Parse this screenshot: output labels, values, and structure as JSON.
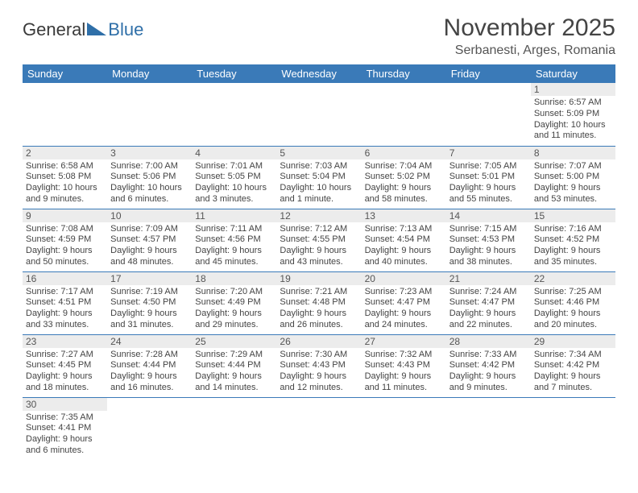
{
  "brand": {
    "part1": "General",
    "part2": "Blue",
    "color1": "#5a5a5a",
    "color2": "#2f6fa8",
    "triangle_color": "#2f6fa8"
  },
  "title": "November 2025",
  "location": "Serbanesti, Arges, Romania",
  "header_bg": "#3a7ab8",
  "header_text_color": "#ffffff",
  "daynum_bg": "#ececec",
  "border_color": "#3a7ab8",
  "page_bg": "#ffffff",
  "text_color": "#444444",
  "days_of_week": [
    "Sunday",
    "Monday",
    "Tuesday",
    "Wednesday",
    "Thursday",
    "Friday",
    "Saturday"
  ],
  "weeks": [
    [
      null,
      null,
      null,
      null,
      null,
      null,
      {
        "n": "1",
        "sr": "6:57 AM",
        "ss": "5:09 PM",
        "dl": "10 hours and 11 minutes."
      }
    ],
    [
      {
        "n": "2",
        "sr": "6:58 AM",
        "ss": "5:08 PM",
        "dl": "10 hours and 9 minutes."
      },
      {
        "n": "3",
        "sr": "7:00 AM",
        "ss": "5:06 PM",
        "dl": "10 hours and 6 minutes."
      },
      {
        "n": "4",
        "sr": "7:01 AM",
        "ss": "5:05 PM",
        "dl": "10 hours and 3 minutes."
      },
      {
        "n": "5",
        "sr": "7:03 AM",
        "ss": "5:04 PM",
        "dl": "10 hours and 1 minute."
      },
      {
        "n": "6",
        "sr": "7:04 AM",
        "ss": "5:02 PM",
        "dl": "9 hours and 58 minutes."
      },
      {
        "n": "7",
        "sr": "7:05 AM",
        "ss": "5:01 PM",
        "dl": "9 hours and 55 minutes."
      },
      {
        "n": "8",
        "sr": "7:07 AM",
        "ss": "5:00 PM",
        "dl": "9 hours and 53 minutes."
      }
    ],
    [
      {
        "n": "9",
        "sr": "7:08 AM",
        "ss": "4:59 PM",
        "dl": "9 hours and 50 minutes."
      },
      {
        "n": "10",
        "sr": "7:09 AM",
        "ss": "4:57 PM",
        "dl": "9 hours and 48 minutes."
      },
      {
        "n": "11",
        "sr": "7:11 AM",
        "ss": "4:56 PM",
        "dl": "9 hours and 45 minutes."
      },
      {
        "n": "12",
        "sr": "7:12 AM",
        "ss": "4:55 PM",
        "dl": "9 hours and 43 minutes."
      },
      {
        "n": "13",
        "sr": "7:13 AM",
        "ss": "4:54 PM",
        "dl": "9 hours and 40 minutes."
      },
      {
        "n": "14",
        "sr": "7:15 AM",
        "ss": "4:53 PM",
        "dl": "9 hours and 38 minutes."
      },
      {
        "n": "15",
        "sr": "7:16 AM",
        "ss": "4:52 PM",
        "dl": "9 hours and 35 minutes."
      }
    ],
    [
      {
        "n": "16",
        "sr": "7:17 AM",
        "ss": "4:51 PM",
        "dl": "9 hours and 33 minutes."
      },
      {
        "n": "17",
        "sr": "7:19 AM",
        "ss": "4:50 PM",
        "dl": "9 hours and 31 minutes."
      },
      {
        "n": "18",
        "sr": "7:20 AM",
        "ss": "4:49 PM",
        "dl": "9 hours and 29 minutes."
      },
      {
        "n": "19",
        "sr": "7:21 AM",
        "ss": "4:48 PM",
        "dl": "9 hours and 26 minutes."
      },
      {
        "n": "20",
        "sr": "7:23 AM",
        "ss": "4:47 PM",
        "dl": "9 hours and 24 minutes."
      },
      {
        "n": "21",
        "sr": "7:24 AM",
        "ss": "4:47 PM",
        "dl": "9 hours and 22 minutes."
      },
      {
        "n": "22",
        "sr": "7:25 AM",
        "ss": "4:46 PM",
        "dl": "9 hours and 20 minutes."
      }
    ],
    [
      {
        "n": "23",
        "sr": "7:27 AM",
        "ss": "4:45 PM",
        "dl": "9 hours and 18 minutes."
      },
      {
        "n": "24",
        "sr": "7:28 AM",
        "ss": "4:44 PM",
        "dl": "9 hours and 16 minutes."
      },
      {
        "n": "25",
        "sr": "7:29 AM",
        "ss": "4:44 PM",
        "dl": "9 hours and 14 minutes."
      },
      {
        "n": "26",
        "sr": "7:30 AM",
        "ss": "4:43 PM",
        "dl": "9 hours and 12 minutes."
      },
      {
        "n": "27",
        "sr": "7:32 AM",
        "ss": "4:43 PM",
        "dl": "9 hours and 11 minutes."
      },
      {
        "n": "28",
        "sr": "7:33 AM",
        "ss": "4:42 PM",
        "dl": "9 hours and 9 minutes."
      },
      {
        "n": "29",
        "sr": "7:34 AM",
        "ss": "4:42 PM",
        "dl": "9 hours and 7 minutes."
      }
    ],
    [
      {
        "n": "30",
        "sr": "7:35 AM",
        "ss": "4:41 PM",
        "dl": "9 hours and 6 minutes."
      },
      null,
      null,
      null,
      null,
      null,
      null
    ]
  ],
  "labels": {
    "sunrise": "Sunrise: ",
    "sunset": "Sunset: ",
    "daylight": "Daylight: "
  }
}
